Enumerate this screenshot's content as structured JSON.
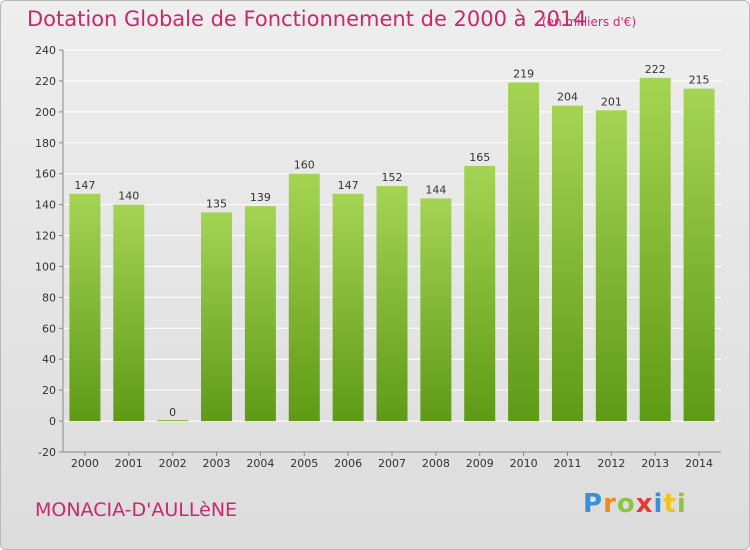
{
  "header": {
    "title": "Dotation Globale de Fonctionnement de 2000 à 2014",
    "subtitle": "(en milliers d'€)"
  },
  "footer": {
    "place": "MONACIA-D'AULLèNE",
    "logo": {
      "letters": [
        "P",
        "r",
        "o",
        "x",
        "i",
        "t",
        "i"
      ]
    }
  },
  "colors": {
    "title": "#c8296b",
    "bar_light": "#a5d454",
    "bar_dark": "#5f9a16",
    "grid": "#ffffff"
  },
  "chart_data": {
    "type": "bar",
    "title": "Dotation Globale de Fonctionnement de 2000 à 2014",
    "subtitle": "(en milliers d'€)",
    "categories": [
      "2000",
      "2001",
      "2002",
      "2003",
      "2004",
      "2005",
      "2006",
      "2007",
      "2008",
      "2009",
      "2010",
      "2011",
      "2012",
      "2013",
      "2014"
    ],
    "values": [
      147,
      140,
      0,
      135,
      139,
      160,
      147,
      152,
      144,
      165,
      219,
      204,
      201,
      222,
      215
    ],
    "ylim": [
      -20,
      240
    ],
    "yticks": [
      -20,
      0,
      20,
      40,
      60,
      80,
      100,
      120,
      140,
      160,
      180,
      200,
      220,
      240
    ],
    "grid": true,
    "xlabel": "",
    "ylabel": ""
  }
}
